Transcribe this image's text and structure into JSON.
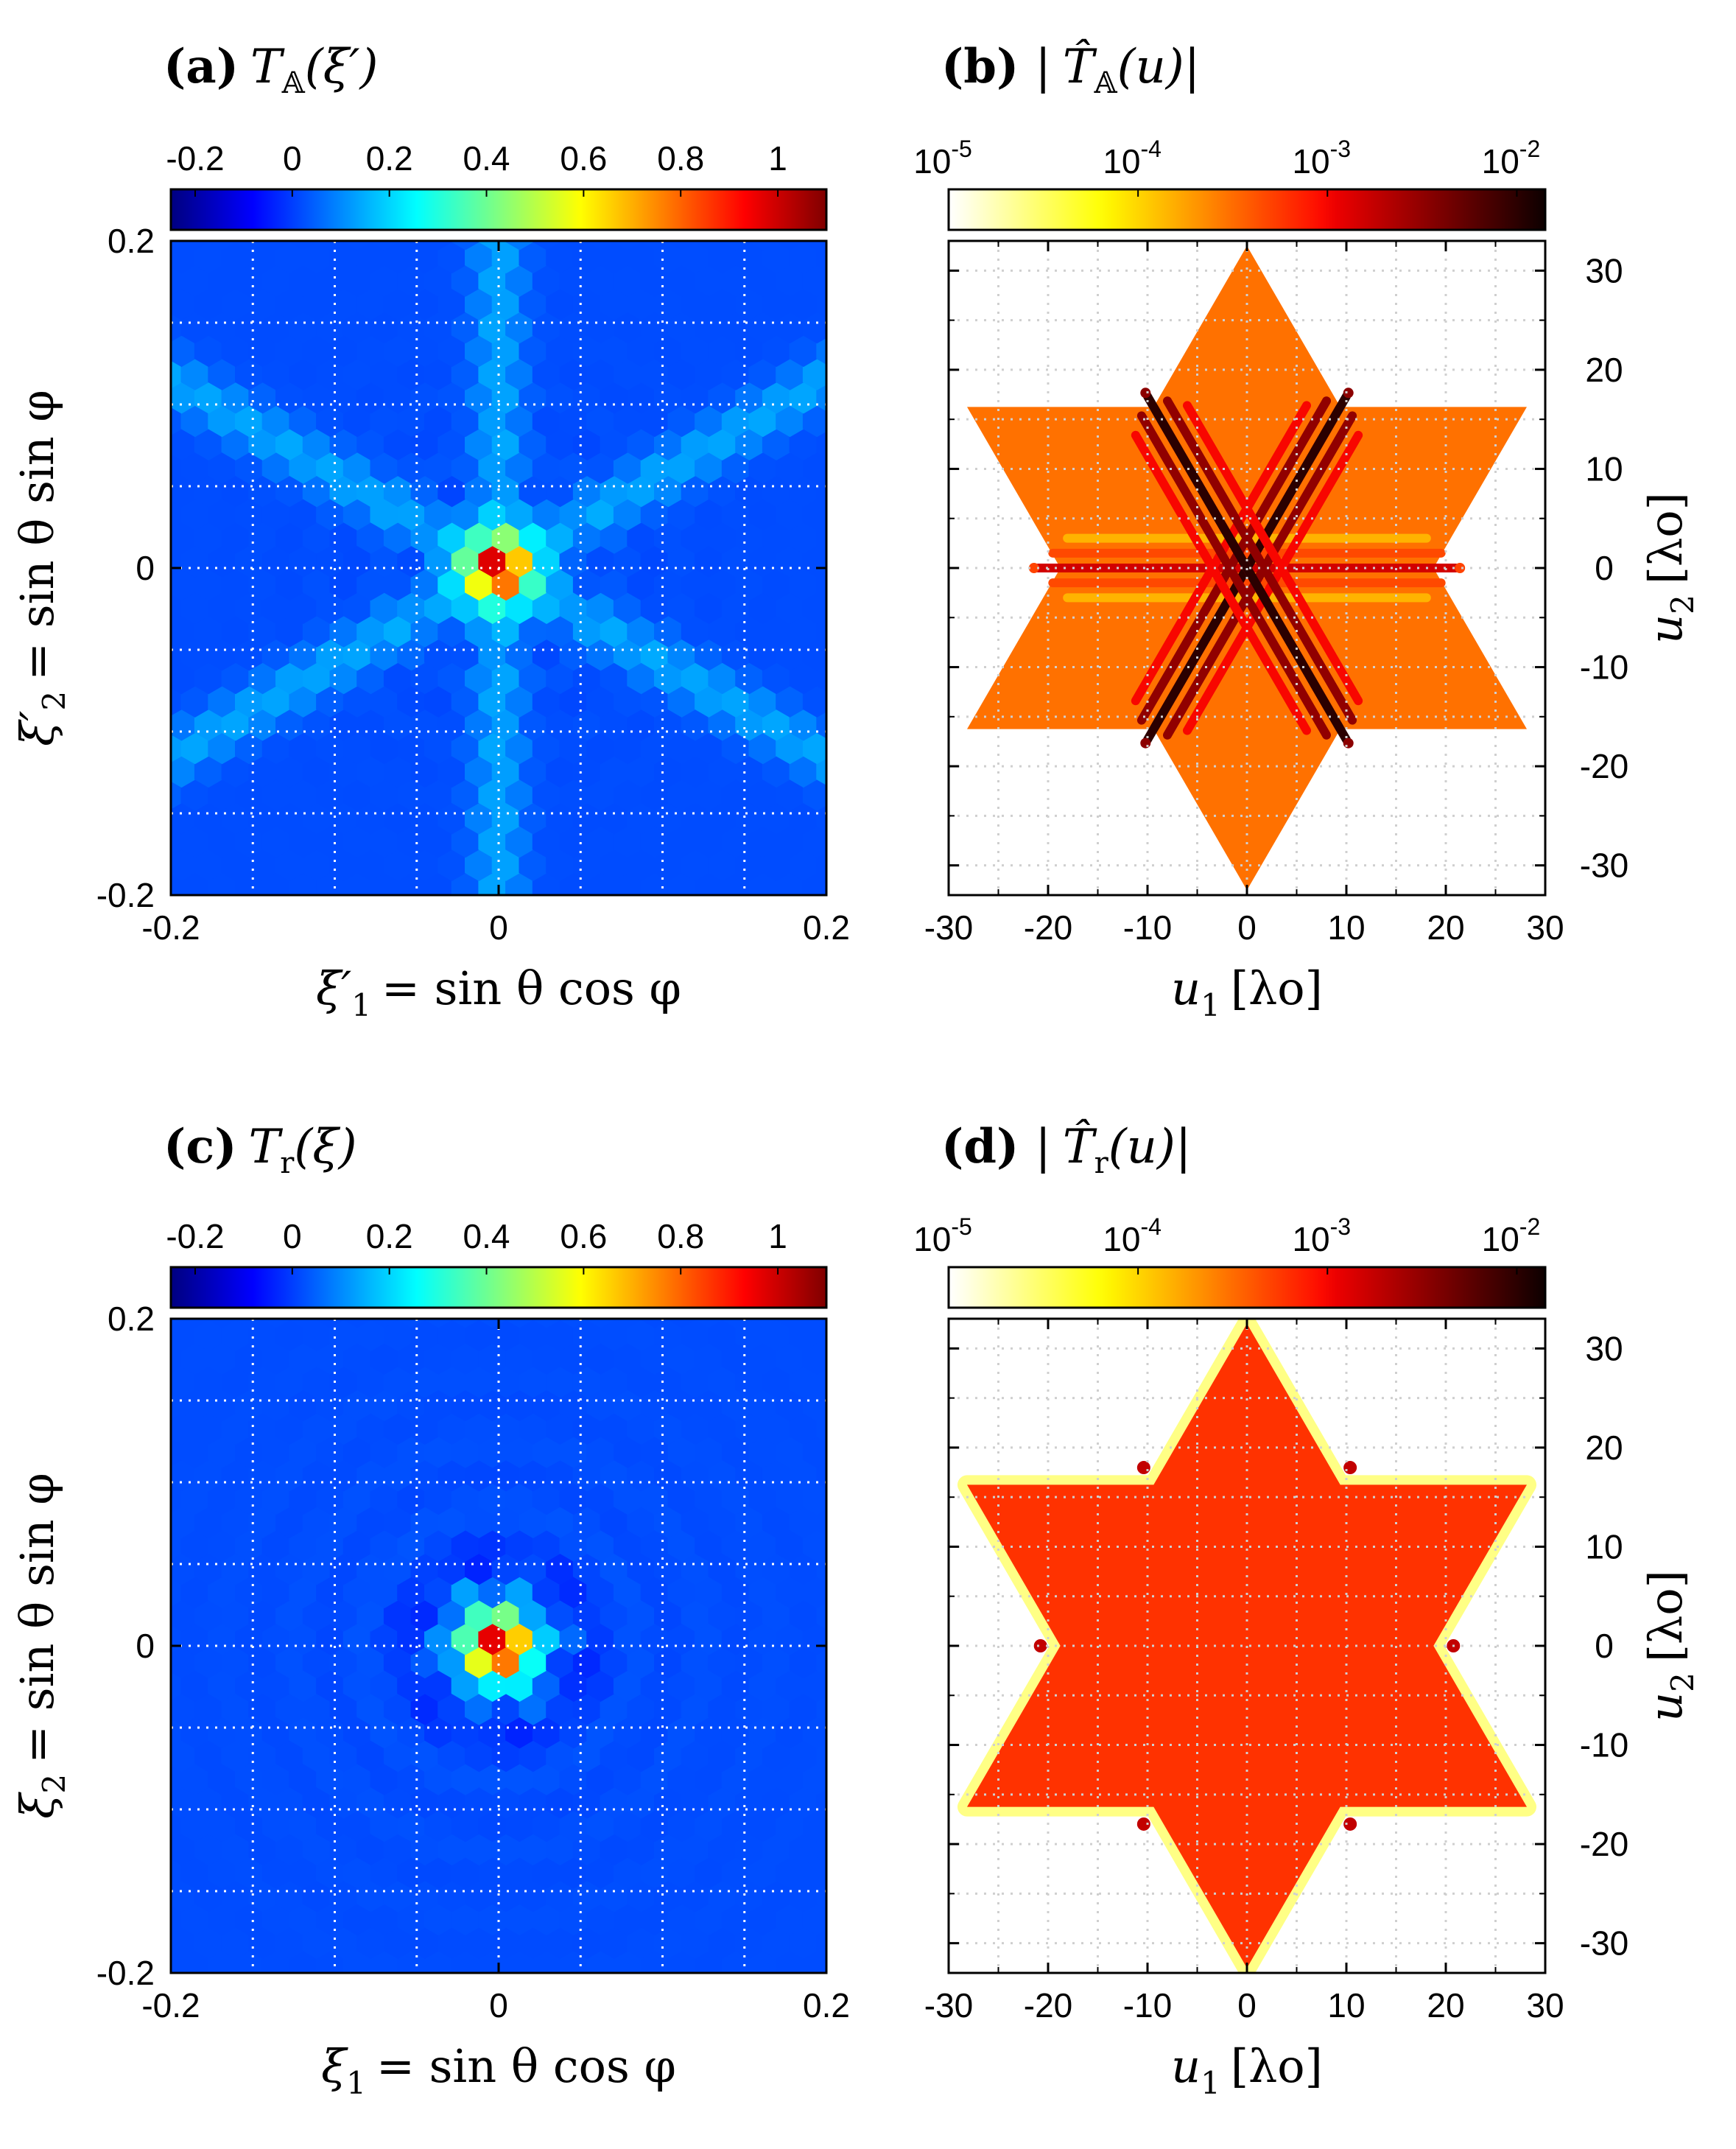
{
  "figure": {
    "chart_data": [
      {
        "type": "heatmap",
        "label": "(a)",
        "title": "T_A(ξ′)",
        "title_main": "T",
        "title_sub": "𝔸",
        "title_arg": "(ξ′)",
        "xlabel": "ξ′1 = sin θ cos φ",
        "xlabel_sym": "ξ′",
        "xlabel_sub": "1",
        "xlabel_rhs": "= sin θ cos φ",
        "ylabel": "ξ′2 = sin θ sin φ",
        "ylabel_sym": "ξ′",
        "ylabel_sub": "2",
        "ylabel_rhs": "= sin θ sin φ",
        "xlim": [
          -0.2,
          0.2
        ],
        "ylim": [
          -0.2,
          0.2
        ],
        "xticks": [
          "-0.2",
          "0",
          "0.2"
        ],
        "yticks": [
          "0.2",
          "0",
          "-0.2"
        ],
        "grid": true,
        "grid_step": 0.05,
        "colorbar": {
          "scale": "linear",
          "colormap": "jet",
          "range": [
            -0.25,
            1.1
          ],
          "ticks": [
            "-0.2",
            "0",
            "0.2",
            "0.4",
            "0.6",
            "0.8",
            "1"
          ],
          "tick_values": [
            -0.2,
            0,
            0.2,
            0.4,
            0.6,
            0.8,
            1.0
          ]
        },
        "field": {
          "pattern": "six-fold",
          "peak_value": 1.0,
          "peak_at": [
            0,
            0
          ],
          "background_value": 0.02,
          "ray_value": 0.12,
          "ray_angles_deg": [
            90,
            30,
            150
          ]
        }
      },
      {
        "type": "heatmap",
        "label": "(b)",
        "title": "|T̂_A(u)|",
        "title_main": "T̂",
        "title_sub": "𝔸",
        "title_arg": "(u)",
        "xlabel": "u1 [λo]",
        "xlabel_sym": "u",
        "xlabel_sub": "1",
        "xlabel_rhs": "[λo]",
        "ylabel": "u2 [λo]",
        "ylabel_sym": "u",
        "ylabel_sub": "2",
        "ylabel_rhs": "[λo]",
        "xlim": [
          -30,
          30
        ],
        "ylim": [
          -33,
          33
        ],
        "xticks": [
          "-30",
          "-20",
          "-10",
          "0",
          "10",
          "20",
          "30"
        ],
        "yticks": [
          "30",
          "20",
          "10",
          "0",
          "-10",
          "-20",
          "-30"
        ],
        "yaxis_position": "right",
        "grid": true,
        "colorbar": {
          "scale": "log",
          "colormap": "hot-reversed",
          "range_exponent": [
            -5,
            -1.85
          ],
          "ticks": [
            "10-5",
            "10-4",
            "10-3",
            "10-2"
          ],
          "tick_bases": [
            "10",
            "10",
            "10",
            "10"
          ],
          "tick_exponents": [
            "-5",
            "-4",
            "-3",
            "-2"
          ],
          "tick_values": [
            -5,
            -4,
            -3,
            -2
          ]
        },
        "shape": {
          "type": "hexagram",
          "vertex_radius": 32.5,
          "fill_value": 0.0003,
          "lines": [
            {
              "angle_deg": 0,
              "length": 21,
              "value": 0.0015
            },
            {
              "angle_deg": 60,
              "length": 20,
              "value": 0.01
            },
            {
              "angle_deg": 120,
              "length": 20,
              "value": 0.01
            }
          ]
        }
      },
      {
        "type": "heatmap",
        "label": "(c)",
        "title": "T_r(ξ)",
        "title_main": "T",
        "title_sub": "r",
        "title_arg": "(ξ)",
        "xlabel": "ξ1 = sin θ cos φ",
        "xlabel_sym": "ξ",
        "xlabel_sub": "1",
        "xlabel_rhs": "= sin θ cos φ",
        "ylabel": "ξ2 = sin θ sin φ",
        "ylabel_sym": "ξ",
        "ylabel_sub": "2",
        "ylabel_rhs": "= sin θ sin φ",
        "xlim": [
          -0.2,
          0.2
        ],
        "ylim": [
          -0.2,
          0.2
        ],
        "xticks": [
          "-0.2",
          "0",
          "0.2"
        ],
        "yticks": [
          "0.2",
          "0",
          "-0.2"
        ],
        "grid": true,
        "grid_step": 0.05,
        "colorbar": {
          "scale": "linear",
          "colormap": "jet",
          "range": [
            -0.25,
            1.1
          ],
          "ticks": [
            "-0.2",
            "0",
            "0.2",
            "0.4",
            "0.6",
            "0.8",
            "1"
          ],
          "tick_values": [
            -0.2,
            0,
            0.2,
            0.4,
            0.6,
            0.8,
            1.0
          ]
        },
        "field": {
          "pattern": "isotropic",
          "peak_value": 1.0,
          "peak_at": [
            0,
            0
          ],
          "background_value": 0.02,
          "ray_value": 0.0
        }
      },
      {
        "type": "heatmap",
        "label": "(d)",
        "title": "|T̂_r(u)|",
        "title_main": "T̂",
        "title_sub": "r",
        "title_arg": "(u)",
        "xlabel": "u1 [λo]",
        "xlabel_sym": "u",
        "xlabel_sub": "1",
        "xlabel_rhs": "[λo]",
        "ylabel": "u2 [λo]",
        "ylabel_sym": "u",
        "ylabel_sub": "2",
        "ylabel_rhs": "[λo]",
        "xlim": [
          -30,
          30
        ],
        "ylim": [
          -33,
          33
        ],
        "xticks": [
          "-30",
          "-20",
          "-10",
          "0",
          "10",
          "20",
          "30"
        ],
        "yticks": [
          "30",
          "20",
          "10",
          "0",
          "-10",
          "-20",
          "-30"
        ],
        "yaxis_position": "right",
        "grid": true,
        "colorbar": {
          "scale": "log",
          "colormap": "hot-reversed",
          "range_exponent": [
            -5,
            -1.85
          ],
          "ticks": [
            "10-5",
            "10-4",
            "10-3",
            "10-2"
          ],
          "tick_bases": [
            "10",
            "10",
            "10",
            "10"
          ],
          "tick_exponents": [
            "-5",
            "-4",
            "-3",
            "-2"
          ],
          "tick_values": [
            -5,
            -4,
            -3,
            -2
          ]
        },
        "shape": {
          "type": "hexagram",
          "vertex_radius": 32.5,
          "fill_value": 0.0006,
          "edge_value": 2.5e-05
        }
      }
    ]
  }
}
